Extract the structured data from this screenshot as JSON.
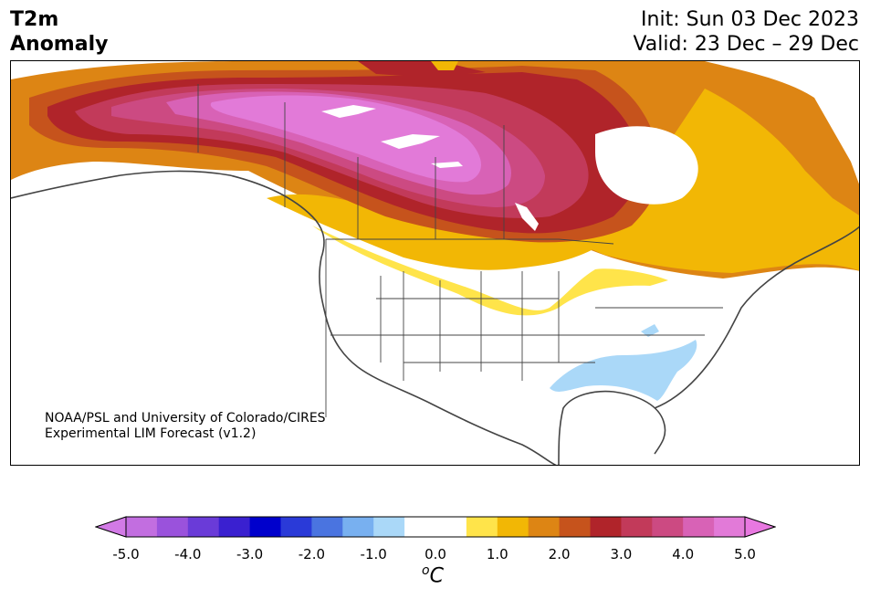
{
  "header": {
    "title_line1": "T2m",
    "title_line2": "Anomaly",
    "init_text": "Init: Sun 03 Dec 2023",
    "valid_text": "Valid: 23 Dec – 29 Dec"
  },
  "credit": {
    "line1": "NOAA/PSL and University of Colorado/CIRES",
    "line2": "Experimental LIM Forecast (v1.2)"
  },
  "colorbar": {
    "unit_base": "C",
    "unit_sup": "o",
    "tick_labels": [
      "-5.0",
      "-4.0",
      "-3.0",
      "-2.0",
      "-1.0",
      "0.0",
      "1.0",
      "2.0",
      "3.0",
      "4.0",
      "5.0"
    ],
    "colors": [
      "#c26ee0",
      "#9a52dc",
      "#6a3bd8",
      "#3a20d0",
      "#0000cc",
      "#2a3ad8",
      "#4a74e0",
      "#78b0f0",
      "#aad8f8",
      "#ffffff",
      "#ffffff",
      "#ffe44a",
      "#f2b705",
      "#dd8514",
      "#c6531c",
      "#b0242a",
      "#c23a5a",
      "#cc4a82",
      "#d862b6",
      "#e27ad8"
    ],
    "extend_low_color": "#d27ae6",
    "extend_high_color": "#e878e0"
  },
  "legend_colors": {
    "land": "#fdfdfc",
    "water": "#ffffff",
    "cold_anomaly": "#aad8f8"
  }
}
